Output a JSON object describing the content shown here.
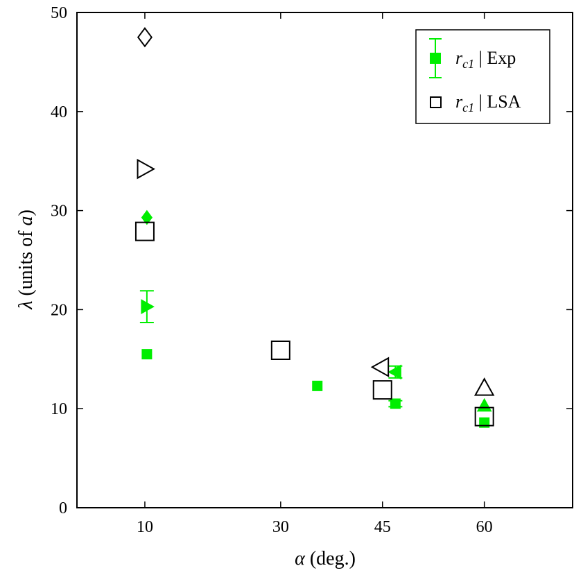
{
  "chart_data": {
    "type": "scatter",
    "xlabel_symbol": "α",
    "xlabel_rest": " (deg.)",
    "ylabel_symbol": "λ",
    "ylabel_rest": " (units of ",
    "ylabel_unit": "a",
    "ylabel_close": ")",
    "xlim": [
      0,
      73
    ],
    "ylim": [
      0,
      50
    ],
    "x_ticks": [
      10,
      30,
      45,
      60
    ],
    "x_tick_positions": [
      10,
      30,
      45,
      60
    ],
    "y_ticks": [
      0,
      10,
      20,
      30,
      40,
      50
    ],
    "grid": false,
    "legend_position": "top-right",
    "colors": {
      "exp": "#00ee00",
      "lsa": "#000000"
    },
    "series": [
      {
        "name": "r_c1 | Exp",
        "legend_main": "r",
        "legend_sub": "c1",
        "legend_rest": " | Exp",
        "marker": "filled",
        "points": [
          {
            "x": 10.3,
            "y": 29.3,
            "shape": "diamond"
          },
          {
            "x": 10.3,
            "y": 20.3,
            "shape": "triangle-right",
            "err_low": 18.7,
            "err_high": 21.9
          },
          {
            "x": 10.3,
            "y": 15.5,
            "shape": "square"
          },
          {
            "x": 35.4,
            "y": 12.3,
            "shape": "square"
          },
          {
            "x": 46.9,
            "y": 13.7,
            "shape": "triangle-left",
            "err_low": 13.1,
            "err_high": 14.3
          },
          {
            "x": 46.9,
            "y": 10.5,
            "shape": "square",
            "err_low": 10.2,
            "err_high": 10.8
          },
          {
            "x": 60.0,
            "y": 10.3,
            "shape": "triangle-up"
          },
          {
            "x": 60.0,
            "y": 8.6,
            "shape": "square"
          }
        ]
      },
      {
        "name": "r_c1 | LSA",
        "legend_main": "r",
        "legend_sub": "c1",
        "legend_rest": " | LSA",
        "marker": "open",
        "points": [
          {
            "x": 10.0,
            "y": 47.5,
            "shape": "diamond"
          },
          {
            "x": 10.0,
            "y": 34.2,
            "shape": "triangle-right"
          },
          {
            "x": 10.0,
            "y": 27.9,
            "shape": "square"
          },
          {
            "x": 30.0,
            "y": 15.9,
            "shape": "square"
          },
          {
            "x": 44.8,
            "y": 14.2,
            "shape": "triangle-left"
          },
          {
            "x": 45.0,
            "y": 11.9,
            "shape": "square"
          },
          {
            "x": 60.0,
            "y": 12.1,
            "shape": "triangle-up"
          },
          {
            "x": 60.0,
            "y": 9.2,
            "shape": "square"
          }
        ]
      }
    ]
  }
}
